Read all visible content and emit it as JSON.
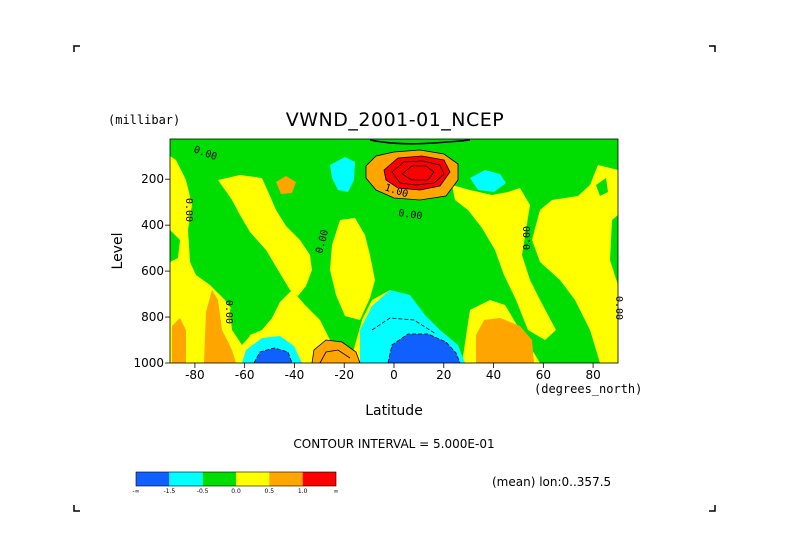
{
  "chart_data": {
    "type": "heatmap",
    "title": "VWND_2001-01_NCEP",
    "xlabel": "Latitude",
    "x_units": "(degrees_north)",
    "ylabel": "Level",
    "y_units": "(millibar)",
    "xlim": [
      -90,
      90
    ],
    "ylim": [
      1000,
      25
    ],
    "x_ticks": [
      "-80",
      "-60",
      "-40",
      "-20",
      "0",
      "20",
      "40",
      "60",
      "80"
    ],
    "y_ticks": [
      "200",
      "400",
      "600",
      "800",
      "1000"
    ],
    "contour_interval_text": "CONTOUR INTERVAL = 5.000E-01",
    "footer_text": "(mean) lon:0..357.5",
    "contour_labels": [
      "0.00",
      "0.00",
      "0.00",
      "0.00",
      "0.00",
      "0.00",
      "0.00",
      "1.00"
    ],
    "colorbar": {
      "colors": [
        "#1060ff",
        "#00ffff",
        "#00dd00",
        "#ffff00",
        "#ffa500",
        "#ff0000"
      ],
      "labels": [
        "-∞",
        "-1.5",
        "-0.5",
        "0.0",
        "0.5",
        "1.0",
        "∞"
      ]
    }
  }
}
